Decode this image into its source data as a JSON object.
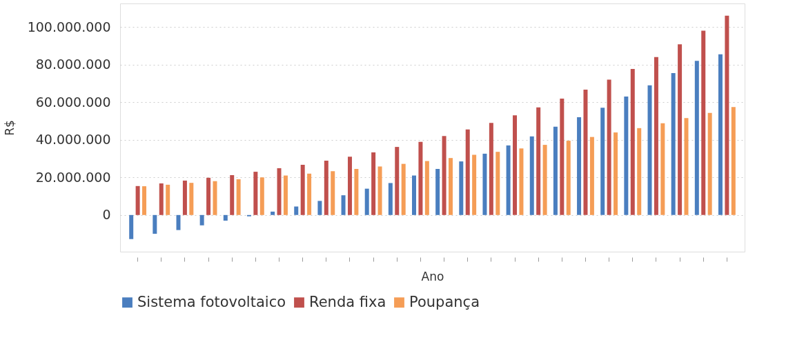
{
  "chart_data": {
    "type": "bar",
    "xlabel": "Ano",
    "ylabel": "R$",
    "categories": [
      null,
      null,
      null,
      null,
      null,
      null,
      null,
      null,
      null,
      null,
      null,
      null,
      null,
      null,
      null,
      null,
      null,
      null,
      null,
      null,
      null,
      null,
      null,
      null,
      null,
      null
    ],
    "series": [
      {
        "name": "Sistema fotovoltaico",
        "color": "#4a7ebf",
        "values": [
          -12800000,
          -10000000,
          -8000000,
          -5500000,
          -3000000,
          -700000,
          1800000,
          4500000,
          7500000,
          10500000,
          14000000,
          17000000,
          21000000,
          24500000,
          28500000,
          32600000,
          37000000,
          41800000,
          47000000,
          52000000,
          57000000,
          63000000,
          69000000,
          75500000,
          82000000,
          85500000
        ]
      },
      {
        "name": "Renda fixa",
        "color": "#c0504d",
        "values": [
          15400000,
          16800000,
          18300000,
          19800000,
          21200000,
          23000000,
          24900000,
          26700000,
          28900000,
          31000000,
          33300000,
          36200000,
          38900000,
          42000000,
          45500000,
          49000000,
          53000000,
          57200000,
          61900000,
          66700000,
          72000000,
          77700000,
          84000000,
          90800000,
          98000000,
          106000000
        ]
      },
      {
        "name": "Poupança",
        "color": "#f59d56",
        "values": [
          15300000,
          16100000,
          17100000,
          18000000,
          19000000,
          20000000,
          21000000,
          22000000,
          23300000,
          24500000,
          25800000,
          27200000,
          28700000,
          30300000,
          32000000,
          33600000,
          35400000,
          37300000,
          39500000,
          41500000,
          43900000,
          46200000,
          48800000,
          51500000,
          54300000,
          57400000
        ]
      }
    ],
    "ylim": [
      -19500000,
      112500000
    ],
    "yticks": [
      {
        "value": 0,
        "label": "0"
      },
      {
        "value": 20000000,
        "label": "20.000.000"
      },
      {
        "value": 40000000,
        "label": "40.000.000"
      },
      {
        "value": 60000000,
        "label": "60.000.000"
      },
      {
        "value": 80000000,
        "label": "80.000.000"
      },
      {
        "value": 100000000,
        "label": "100.000.000"
      }
    ],
    "tick_labels": "y",
    "grid": "y",
    "legend": "bottom"
  }
}
